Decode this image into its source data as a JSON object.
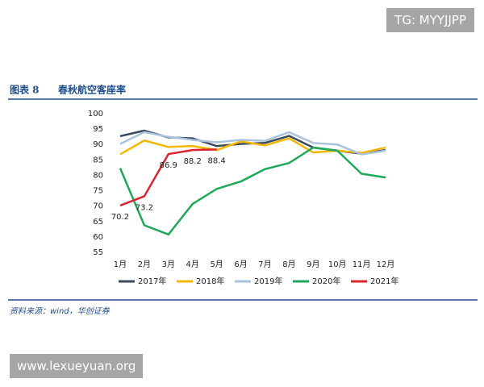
{
  "watermarks": [
    "TG: MYYJJPP",
    "www.lexueyuan.org"
  ],
  "chart_data": {
    "type": "line",
    "figure_label": "图表 8",
    "title": "春秋航空客座率",
    "source": "资料来源：wind，华创证券",
    "categories": [
      "1月",
      "2月",
      "3月",
      "4月",
      "5月",
      "6月",
      "7月",
      "8月",
      "9月",
      "10月",
      "11月",
      "12月"
    ],
    "ylim": [
      55,
      100
    ],
    "yticks": [
      55,
      60,
      65,
      70,
      75,
      80,
      85,
      90,
      95,
      100
    ],
    "grid": false,
    "legend": "bottom",
    "series": [
      {
        "name": "2017年",
        "color": "#3b4a5e",
        "values": [
          92.7,
          94.5,
          92.3,
          92.0,
          89.5,
          90.2,
          90.5,
          92.8,
          89.0,
          88.0,
          87.0,
          88.2
        ]
      },
      {
        "name": "2018年",
        "color": "#f2b800",
        "values": [
          86.8,
          91.3,
          89.2,
          89.5,
          88.2,
          91.0,
          89.7,
          92.0,
          87.4,
          88.0,
          87.3,
          89.0
        ]
      },
      {
        "name": "2019年",
        "color": "#a9c3dc",
        "values": [
          90.2,
          94.0,
          92.5,
          91.5,
          90.7,
          91.5,
          91.2,
          94.0,
          90.5,
          90.0,
          86.8,
          88.0
        ]
      },
      {
        "name": "2020年",
        "color": "#1fa85a",
        "values": [
          82.3,
          63.8,
          60.8,
          70.7,
          75.6,
          78.0,
          82.0,
          84.0,
          89.0,
          88.0,
          80.5,
          79.3
        ]
      },
      {
        "name": "2021年",
        "color": "#d9232d",
        "values": [
          70.2,
          73.2,
          86.9,
          88.2,
          88.4,
          null,
          null,
          null,
          null,
          null,
          null,
          null
        ],
        "data_labels": true
      }
    ]
  }
}
